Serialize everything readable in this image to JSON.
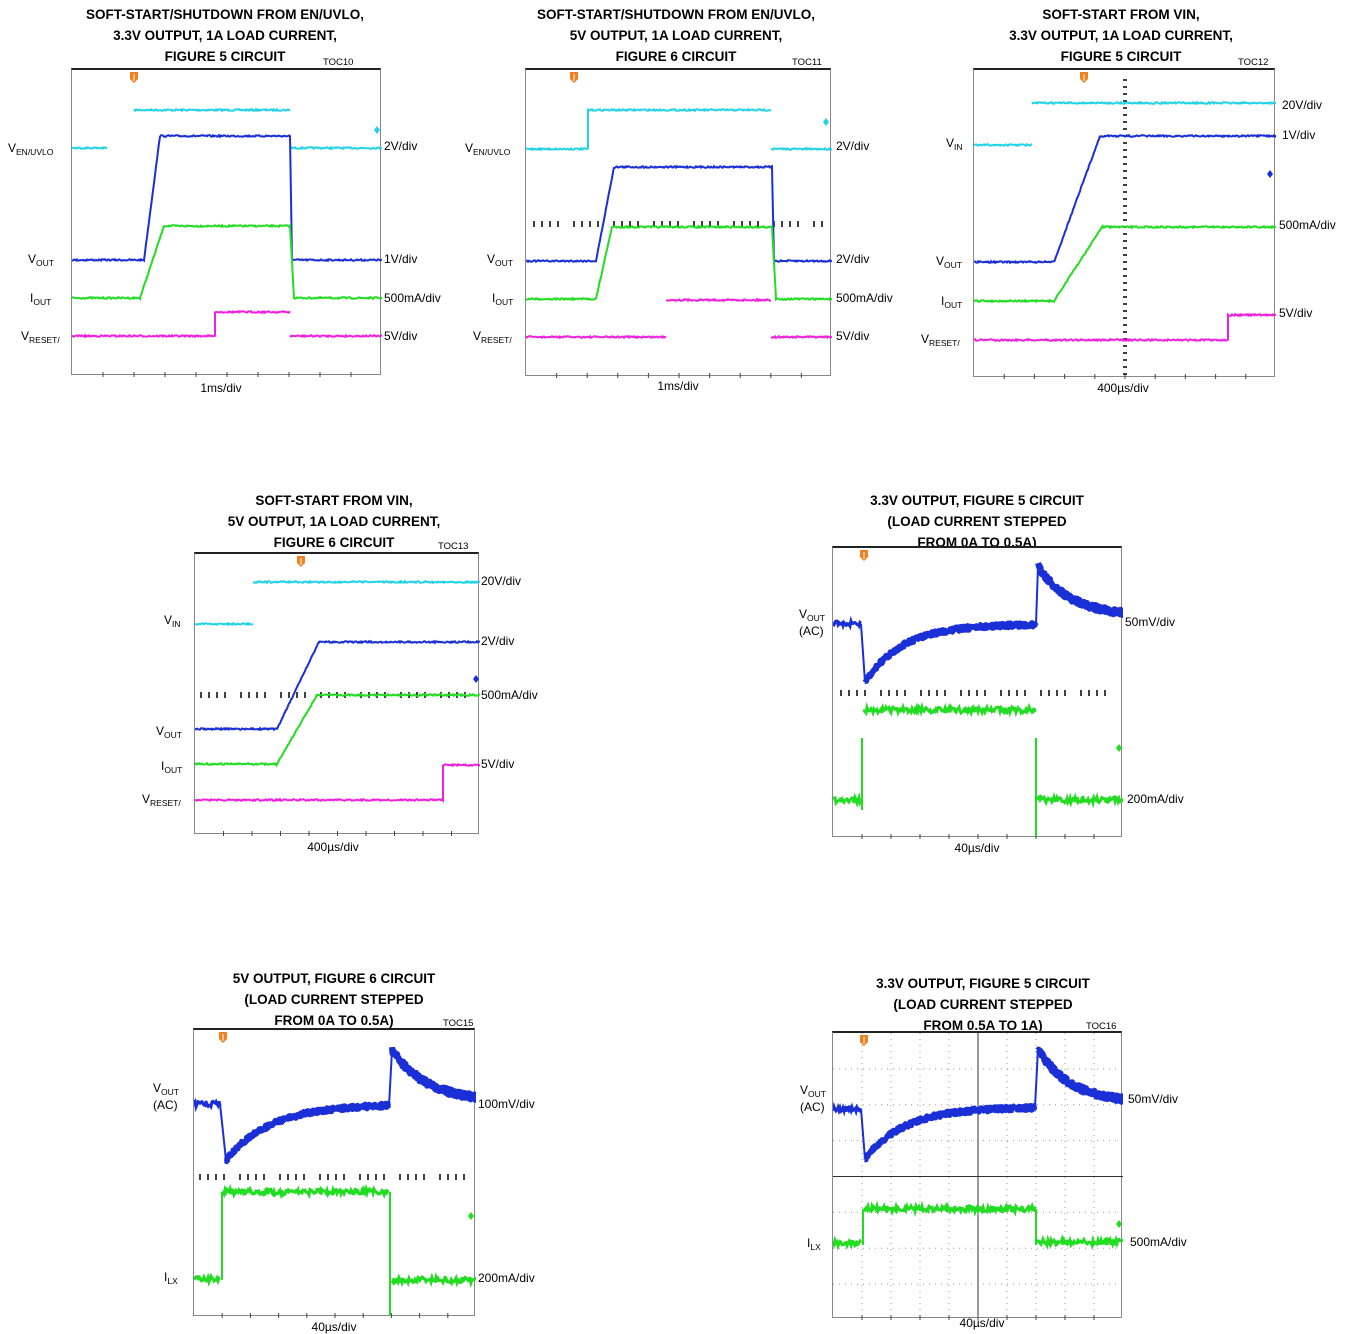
{
  "chart_data": [
    {
      "id": "TOC10",
      "toc": "TOC10",
      "title": "SOFT-START/SHUTDOWN FROM EN/UVLO,\n3.3V OUTPUT, 1A LOAD CURRENT,\nFIGURE 5 CIRCUIT",
      "type": "line",
      "xlabel": "1ms/div",
      "grid": false,
      "series": [
        {
          "name": "V_EN/UVLO",
          "scale": "2V/div",
          "color": "#22d3e6"
        },
        {
          "name": "V_OUT",
          "scale": "1V/div",
          "color": "#1a2fd6"
        },
        {
          "name": "I_OUT",
          "scale": "500mA/div",
          "color": "#22dd22"
        },
        {
          "name": "V_RESET/",
          "scale": "5V/div",
          "color": "#ee22dd"
        }
      ]
    },
    {
      "id": "TOC11",
      "toc": "TOC11",
      "title": "SOFT-START/SHUTDOWN FROM EN/UVLO,\n5V OUTPUT, 1A LOAD CURRENT,\nFIGURE 6 CIRCUIT",
      "type": "line",
      "xlabel": "1ms/div",
      "grid": false,
      "series": [
        {
          "name": "V_EN/UVLO",
          "scale": "2V/div",
          "color": "#22d3e6"
        },
        {
          "name": "V_OUT",
          "scale": "2V/div",
          "color": "#1a2fd6"
        },
        {
          "name": "I_OUT",
          "scale": "500mA/div",
          "color": "#22dd22"
        },
        {
          "name": "V_RESET/",
          "scale": "5V/div",
          "color": "#ee22dd"
        }
      ]
    },
    {
      "id": "TOC12",
      "toc": "TOC12",
      "title": "SOFT-START FROM VIN,\n3.3V OUTPUT, 1A LOAD CURRENT,\nFIGURE 5 CIRCUIT",
      "type": "line",
      "xlabel": "400µs/div",
      "grid": false,
      "series": [
        {
          "name": "V_IN",
          "scale": "20V/div",
          "color": "#22d3e6"
        },
        {
          "name": "V_OUT",
          "scale": "1V/div",
          "color": "#1a2fd6"
        },
        {
          "name": "I_OUT",
          "scale": "500mA/div",
          "color": "#22dd22"
        },
        {
          "name": "V_RESET/",
          "scale": "5V/div",
          "color": "#ee22dd"
        }
      ]
    },
    {
      "id": "TOC13",
      "toc": "TOC13",
      "title": "SOFT-START FROM VIN,\n5V OUTPUT, 1A LOAD CURRENT,\nFIGURE 6 CIRCUIT",
      "type": "line",
      "xlabel": "400µs/div",
      "grid": false,
      "series": [
        {
          "name": "V_IN",
          "scale": "20V/div",
          "color": "#22d3e6"
        },
        {
          "name": "V_OUT",
          "scale": "2V/div",
          "color": "#1a2fd6"
        },
        {
          "name": "I_OUT",
          "scale": "500mA/div",
          "color": "#22dd22"
        },
        {
          "name": "V_RESET/",
          "scale": "5V/div",
          "color": "#ee22dd"
        }
      ]
    },
    {
      "id": "TOC14",
      "toc": "",
      "title": "3.3V OUTPUT, FIGURE 5 CIRCUIT\n(LOAD CURRENT STEPPED\nFROM 0A TO 0.5A)",
      "type": "line",
      "xlabel": "40µs/div",
      "grid": false,
      "series": [
        {
          "name": "V_OUT (AC)",
          "scale": "50mV/div",
          "color": "#1a2fd6"
        },
        {
          "name": "",
          "scale": "200mA/div",
          "color": "#22dd22"
        }
      ]
    },
    {
      "id": "TOC15",
      "toc": "TOC15",
      "title": "5V OUTPUT, FIGURE 6 CIRCUIT\n(LOAD CURRENT STEPPED\nFROM 0A TO 0.5A)",
      "type": "line",
      "xlabel": "40µs/div",
      "grid": false,
      "series": [
        {
          "name": "V_OUT (AC)",
          "scale": "100mV/div",
          "color": "#1a2fd6"
        },
        {
          "name": "I_LX",
          "scale": "200mA/div",
          "color": "#22dd22"
        }
      ]
    },
    {
      "id": "TOC16",
      "toc": "TOC16",
      "title": "3.3V OUTPUT, FIGURE 5 CIRCUIT\n(LOAD CURRENT STEPPED\nFROM 0.5A TO 1A)",
      "type": "line",
      "xlabel": "40µs/div",
      "grid": true,
      "series": [
        {
          "name": "V_OUT (AC)",
          "scale": "50mV/div",
          "color": "#1a2fd6"
        },
        {
          "name": "I_LX",
          "scale": "500mA/div",
          "color": "#22dd22"
        }
      ]
    }
  ]
}
